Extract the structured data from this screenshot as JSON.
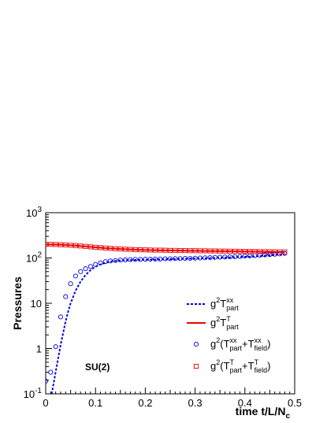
{
  "chart_data": {
    "type": "line",
    "title": "",
    "xlabel": "time t/L/N",
    "xlabel_sub": "c",
    "ylabel": "Pressures",
    "xlim": [
      0,
      0.5
    ],
    "ylim": [
      0.1,
      1000
    ],
    "y_scale": "log",
    "grid": false,
    "legend_position": "bottom-right",
    "annotation": "SU(2)",
    "x_ticks": [
      "0",
      "0.1",
      "0.2",
      "0.3",
      "0.4",
      "0.5"
    ],
    "y_ticks": [
      {
        "base": "10",
        "sup": "-1"
      },
      {
        "base": "1",
        "sup": ""
      },
      {
        "base": "10",
        "sup": ""
      },
      {
        "base": "10",
        "sup": "2"
      },
      {
        "base": "10",
        "sup": "3"
      }
    ],
    "series": [
      {
        "legend": {
          "g": "g",
          "g_sup": "2",
          "pre": "T",
          "sup1": "xx",
          "sub1": "part",
          "mid": "",
          "sup2": "",
          "sub2": "",
          "post": ""
        },
        "style": "dotted-line",
        "color": "#0000dd",
        "x": [
          0.012,
          0.015,
          0.018,
          0.022,
          0.026,
          0.03,
          0.035,
          0.04,
          0.045,
          0.05,
          0.06,
          0.07,
          0.08,
          0.09,
          0.1,
          0.11,
          0.12,
          0.13,
          0.14,
          0.15,
          0.17,
          0.19,
          0.21,
          0.23,
          0.25,
          0.28,
          0.31,
          0.34,
          0.37,
          0.4,
          0.43,
          0.46,
          0.48
        ],
        "y": [
          0.1,
          0.15,
          0.23,
          0.4,
          0.7,
          1.2,
          2.2,
          4,
          6.5,
          10,
          19,
          30,
          42,
          54,
          64,
          72,
          78,
          83,
          86,
          88,
          90,
          91,
          92,
          93,
          94,
          96,
          98,
          100,
          103,
          106,
          110,
          116,
          122
        ]
      },
      {
        "legend": {
          "g": "g",
          "g_sup": "2",
          "pre": "T",
          "sup1": "T",
          "sub1": "part",
          "mid": "",
          "sup2": "",
          "sub2": "",
          "post": ""
        },
        "style": "solid-line",
        "color": "#ee0000",
        "x": [
          0.0,
          0.02,
          0.04,
          0.06,
          0.08,
          0.1,
          0.12,
          0.14,
          0.16,
          0.18,
          0.2,
          0.24,
          0.28,
          0.32,
          0.36,
          0.4,
          0.44,
          0.48
        ],
        "y": [
          200,
          198,
          194,
          188,
          180,
          172,
          165,
          160,
          156,
          153,
          150,
          147,
          145,
          143,
          141,
          139,
          137,
          135
        ]
      },
      {
        "legend": {
          "g": "g",
          "g_sup": "2",
          "pre": "(T",
          "sup1": "xx",
          "sub1": "part",
          "mid": "+T",
          "sup2": "xx",
          "sub2": "field",
          "post": ")"
        },
        "style": "open-circle",
        "color": "#0000dd",
        "x": [
          0.0,
          0.01,
          0.02,
          0.03,
          0.04,
          0.05,
          0.06,
          0.07,
          0.08,
          0.09,
          0.1,
          0.11,
          0.12,
          0.13,
          0.14,
          0.15,
          0.16,
          0.17,
          0.18,
          0.19,
          0.2,
          0.21,
          0.22,
          0.23,
          0.24,
          0.25,
          0.26,
          0.27,
          0.28,
          0.29,
          0.3,
          0.31,
          0.32,
          0.33,
          0.34,
          0.35,
          0.36,
          0.37,
          0.38,
          0.39,
          0.4,
          0.41,
          0.42,
          0.43,
          0.44,
          0.45,
          0.46,
          0.47,
          0.48
        ],
        "y": [
          0.19,
          0.3,
          1.1,
          5,
          14,
          27,
          40,
          50,
          58,
          65,
          72,
          78,
          83,
          86,
          88,
          90,
          91,
          92,
          93,
          93,
          94,
          94,
          95,
          95,
          96,
          96,
          97,
          97,
          98,
          98,
          99,
          100,
          101,
          102,
          103,
          104,
          105,
          106,
          107,
          108,
          110,
          111,
          113,
          115,
          117,
          119,
          121,
          123,
          126
        ]
      },
      {
        "legend": {
          "g": "g",
          "g_sup": "2",
          "pre": "(T",
          "sup1": "T",
          "sub1": "part",
          "mid": "+T",
          "sup2": "T",
          "sub2": "field",
          "post": ")"
        },
        "style": "open-square",
        "color": "#ee0000",
        "x": [
          0.0,
          0.01,
          0.02,
          0.03,
          0.04,
          0.05,
          0.06,
          0.07,
          0.08,
          0.09,
          0.1,
          0.11,
          0.12,
          0.13,
          0.14,
          0.15,
          0.16,
          0.17,
          0.18,
          0.19,
          0.2,
          0.21,
          0.22,
          0.23,
          0.24,
          0.25,
          0.26,
          0.27,
          0.28,
          0.29,
          0.3,
          0.31,
          0.32,
          0.33,
          0.34,
          0.35,
          0.36,
          0.37,
          0.38,
          0.39,
          0.4,
          0.41,
          0.42,
          0.43,
          0.44,
          0.45,
          0.46,
          0.47,
          0.48
        ],
        "y": [
          200,
          200,
          198,
          196,
          194,
          191,
          188,
          184,
          180,
          176,
          172,
          169,
          166,
          163,
          160,
          158,
          156,
          155,
          153,
          152,
          151,
          150,
          149,
          149,
          148,
          147,
          147,
          146,
          146,
          145,
          145,
          144,
          144,
          143,
          143,
          142,
          142,
          141,
          141,
          140,
          140,
          139,
          139,
          138,
          138,
          137,
          137,
          136,
          136
        ]
      }
    ]
  }
}
